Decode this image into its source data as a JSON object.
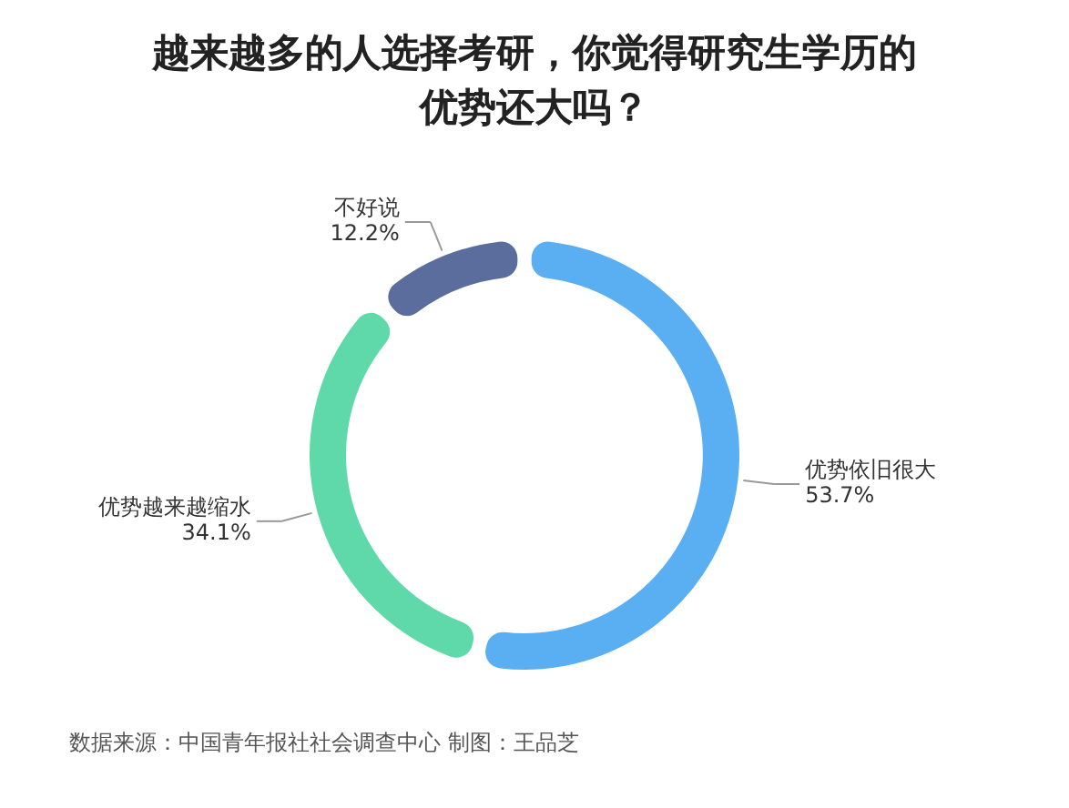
{
  "chart_data": {
    "type": "donut",
    "title": "越来越多的人选择考研，你觉得研究生学历的优势还大吗？",
    "categories": [
      "优势依旧很大",
      "优势越来越缩水",
      "不好说"
    ],
    "values": [
      53.7,
      34.1,
      12.2
    ],
    "value_labels": [
      "53.7%",
      "34.1%",
      "12.2%"
    ],
    "colors": [
      "#5aaef2",
      "#5fd9a9",
      "#5a6d9c"
    ],
    "annotations": [
      "数据来源：中国青年报社社会调查中心 制图：王品芝"
    ]
  }
}
